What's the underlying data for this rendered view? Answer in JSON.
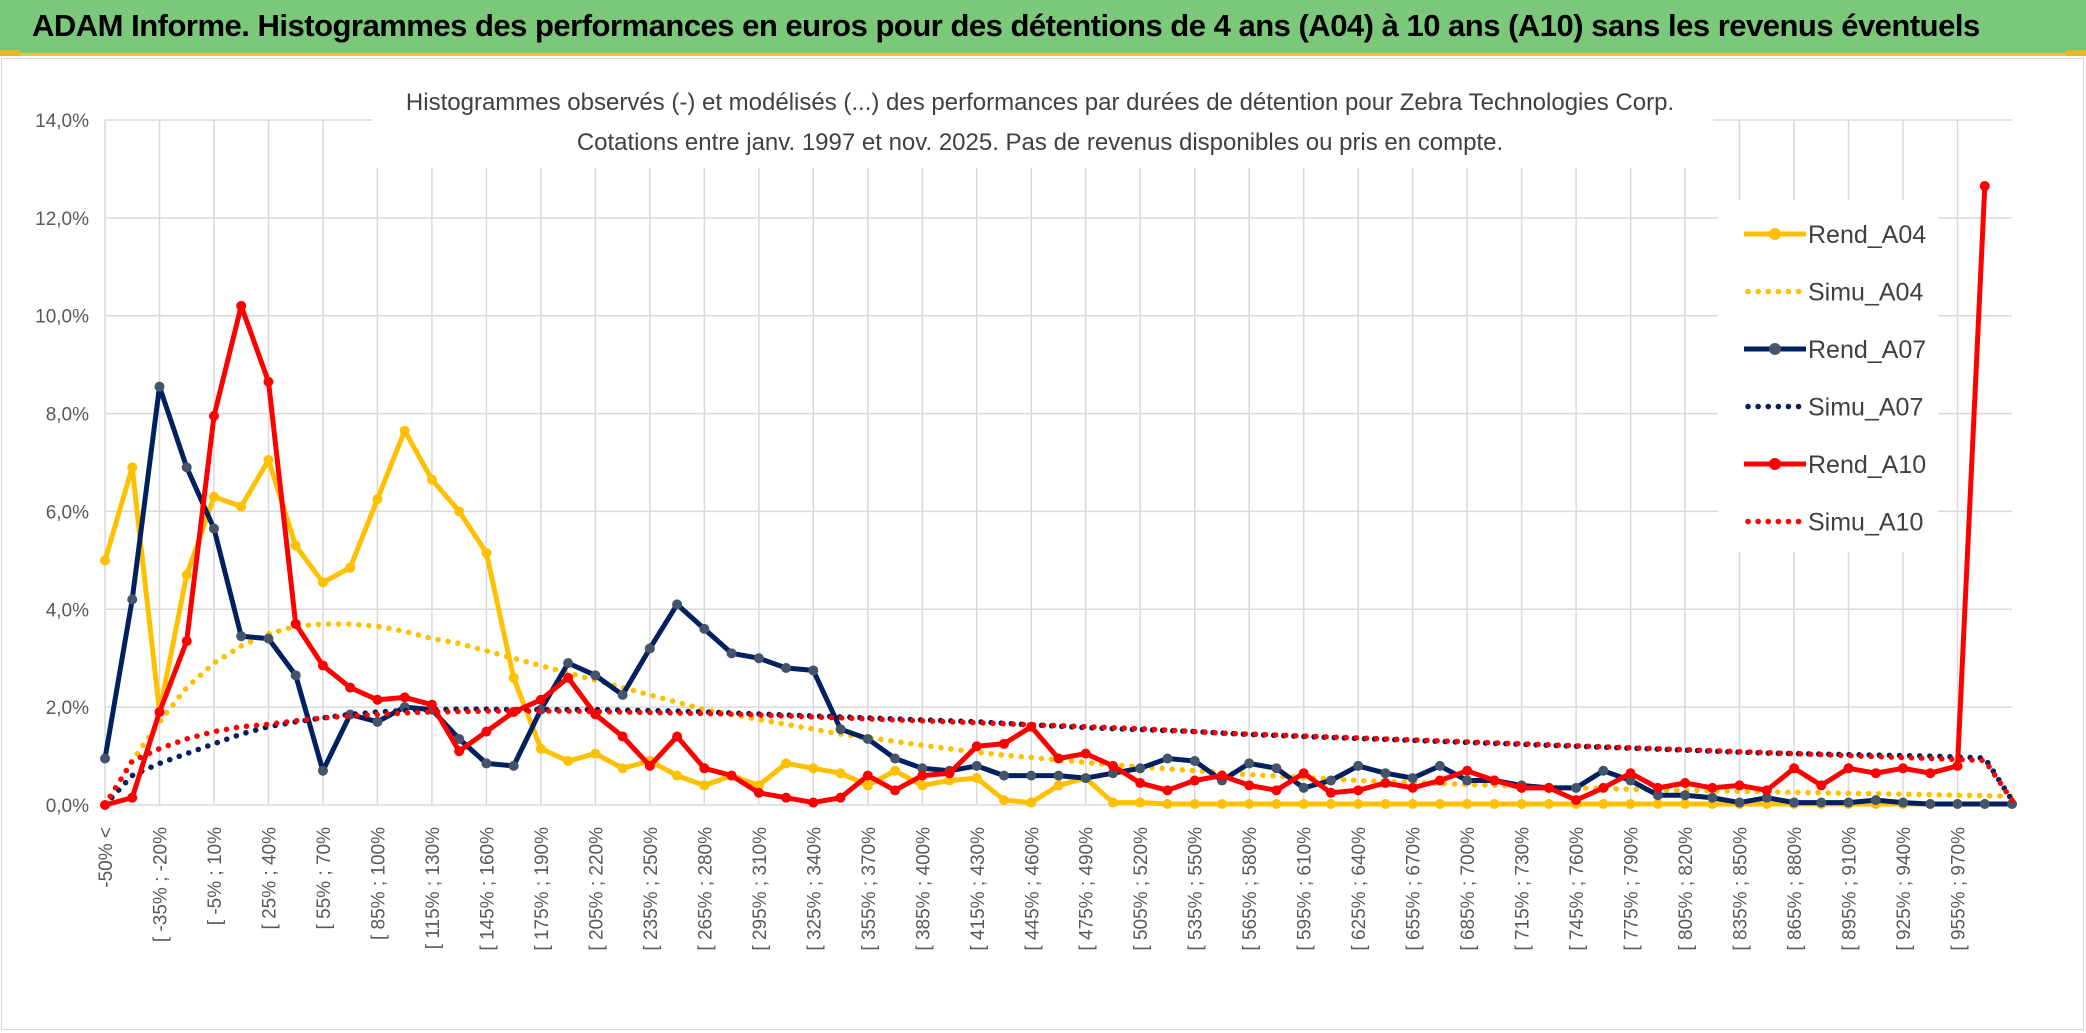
{
  "page_title": "ADAM Informe. Histogrammes des performances en euros pour des détentions de 4 ans (A04) à 10 ans (A10) sans les revenus éventuels",
  "chart_data": {
    "type": "line",
    "title": "Histogrammes observés (-) et modélisés (...) des performances par durées de détention pour Zebra Technologies Corp.",
    "subtitle": "Cotations entre janv. 1997 et nov. 2025. Pas de revenus disponibles ou pris en compte.",
    "xlabel": "",
    "ylabel": "",
    "ylim": [
      0,
      14
    ],
    "yticks": [
      "0,0%",
      "2,0%",
      "4,0%",
      "6,0%",
      "8,0%",
      "10,0%",
      "12,0%",
      "14,0%"
    ],
    "x_tick_labels": [
      "-50% <",
      "[ -35% ; -20%",
      "[ -5% ; 10%",
      "[ 25% ; 40%",
      "[ 55% ; 70%",
      "[ 85% ; 100%",
      "[ 115% ; 130%",
      "[ 145% ; 160%",
      "[ 175% ; 190%",
      "[ 205% ; 220%",
      "[ 235% ; 250%",
      "[ 265% ; 280%",
      "[ 295% ; 310%",
      "[ 325% ; 340%",
      "[ 355% ; 370%",
      "[ 385% ; 400%",
      "[ 415% ; 430%",
      "[ 445% ; 460%",
      "[ 475% ; 490%",
      "[ 505% ; 520%",
      "[ 535% ; 550%",
      "[ 565% ; 580%",
      "[ 595% ; 610%",
      "[ 625% ; 640%",
      "[ 655% ; 670%",
      "[ 685% ; 700%",
      "[ 715% ; 730%",
      "[ 745% ; 760%",
      "[ 775% ; 790%",
      "[ 805% ; 820%",
      "[ 835% ; 850%",
      "[ 865% ; 880%",
      "[ 895% ; 910%",
      "[ 925% ; 940%",
      "[ 955% ; 970%"
    ],
    "legend_position": "right",
    "series": [
      {
        "name": "Rend_A04",
        "style": "solid",
        "color": "#ffc000",
        "values": [
          5.0,
          6.9,
          1.9,
          4.7,
          6.3,
          6.1,
          7.05,
          5.3,
          4.55,
          4.85,
          6.25,
          7.65,
          6.65,
          6.0,
          5.15,
          2.6,
          1.15,
          0.9,
          1.05,
          0.75,
          0.9,
          0.6,
          0.4,
          0.6,
          0.4,
          0.85,
          0.75,
          0.65,
          0.4,
          0.7,
          0.4,
          0.5,
          0.55,
          0.1,
          0.05,
          0.4,
          0.55,
          0.05,
          0.05,
          0.02,
          0.02,
          0.02,
          0.02,
          0.02,
          0.02,
          0.02,
          0.02,
          0.02,
          0.02,
          0.02,
          0.02,
          0.02,
          0.02,
          0.02,
          0.02,
          0.02,
          0.02,
          0.02,
          0.02,
          0.02,
          0.02,
          0.02,
          0.02,
          0.02,
          0.02,
          0.02,
          0.02,
          0.02,
          0.02,
          0.02,
          0.02
        ]
      },
      {
        "name": "Simu_A04",
        "style": "dotted",
        "color": "#ffc000",
        "values": [
          0.0,
          0.9,
          1.7,
          2.4,
          2.9,
          3.25,
          3.5,
          3.65,
          3.7,
          3.7,
          3.65,
          3.55,
          3.4,
          3.3,
          3.15,
          3.0,
          2.85,
          2.7,
          2.55,
          2.4,
          2.25,
          2.1,
          1.95,
          1.85,
          1.75,
          1.65,
          1.55,
          1.45,
          1.38,
          1.3,
          1.22,
          1.15,
          1.08,
          1.02,
          0.97,
          0.92,
          0.87,
          0.82,
          0.78,
          0.74,
          0.7,
          0.66,
          0.62,
          0.59,
          0.56,
          0.53,
          0.5,
          0.48,
          0.46,
          0.44,
          0.42,
          0.4,
          0.38,
          0.36,
          0.35,
          0.34,
          0.32,
          0.31,
          0.3,
          0.29,
          0.28,
          0.27,
          0.26,
          0.25,
          0.24,
          0.23,
          0.22,
          0.21,
          0.2,
          0.19,
          0.18
        ]
      },
      {
        "name": "Rend_A07",
        "style": "solid",
        "color": "#002060",
        "values": [
          0.95,
          4.2,
          8.55,
          6.9,
          5.65,
          3.45,
          3.4,
          2.65,
          0.7,
          1.85,
          1.7,
          2.0,
          1.95,
          1.35,
          0.85,
          0.8,
          1.95,
          2.9,
          2.65,
          2.25,
          3.2,
          4.1,
          3.6,
          3.1,
          3.0,
          2.8,
          2.75,
          1.55,
          1.35,
          0.95,
          0.75,
          0.7,
          0.8,
          0.6,
          0.6,
          0.6,
          0.55,
          0.65,
          0.75,
          0.95,
          0.9,
          0.5,
          0.85,
          0.75,
          0.35,
          0.5,
          0.8,
          0.65,
          0.55,
          0.8,
          0.5,
          0.5,
          0.4,
          0.35,
          0.35,
          0.7,
          0.5,
          0.2,
          0.2,
          0.15,
          0.05,
          0.15,
          0.05,
          0.05,
          0.05,
          0.1,
          0.05,
          0.02,
          0.02,
          0.02,
          0.02
        ]
      },
      {
        "name": "Simu_A07",
        "style": "dotted",
        "color": "#002060",
        "values": [
          0.0,
          0.6,
          0.85,
          1.05,
          1.25,
          1.45,
          1.6,
          1.7,
          1.78,
          1.85,
          1.9,
          1.93,
          1.95,
          1.96,
          1.96,
          1.95,
          1.95,
          1.95,
          1.95,
          1.94,
          1.93,
          1.92,
          1.9,
          1.88,
          1.86,
          1.84,
          1.82,
          1.8,
          1.78,
          1.76,
          1.74,
          1.72,
          1.7,
          1.67,
          1.64,
          1.61,
          1.58,
          1.56,
          1.54,
          1.52,
          1.5,
          1.47,
          1.44,
          1.42,
          1.4,
          1.38,
          1.36,
          1.34,
          1.32,
          1.3,
          1.28,
          1.26,
          1.24,
          1.22,
          1.2,
          1.18,
          1.16,
          1.14,
          1.12,
          1.1,
          1.08,
          1.06,
          1.05,
          1.04,
          1.03,
          1.02,
          1.01,
          1.0,
          0.98,
          0.96,
          0.1
        ]
      },
      {
        "name": "Rend_A10",
        "style": "solid",
        "color": "#ff0000",
        "values": [
          0.0,
          0.15,
          1.9,
          3.35,
          7.95,
          10.2,
          8.65,
          3.7,
          2.85,
          2.4,
          2.15,
          2.2,
          2.05,
          1.1,
          1.5,
          1.9,
          2.15,
          2.6,
          1.85,
          1.4,
          0.8,
          1.4,
          0.75,
          0.6,
          0.25,
          0.15,
          0.05,
          0.15,
          0.6,
          0.3,
          0.6,
          0.65,
          1.2,
          1.25,
          1.6,
          0.95,
          1.05,
          0.8,
          0.45,
          0.3,
          0.5,
          0.6,
          0.4,
          0.3,
          0.65,
          0.25,
          0.3,
          0.45,
          0.35,
          0.5,
          0.7,
          0.5,
          0.35,
          0.35,
          0.1,
          0.35,
          0.65,
          0.35,
          0.45,
          0.35,
          0.4,
          0.3,
          0.75,
          0.4,
          0.75,
          0.65,
          0.75,
          0.65,
          0.8,
          12.65
        ]
      },
      {
        "name": "Simu_A10",
        "style": "dotted",
        "color": "#ff0000",
        "values": [
          0.0,
          0.9,
          1.15,
          1.35,
          1.5,
          1.6,
          1.65,
          1.72,
          1.78,
          1.82,
          1.85,
          1.88,
          1.9,
          1.91,
          1.92,
          1.92,
          1.92,
          1.92,
          1.91,
          1.9,
          1.89,
          1.88,
          1.87,
          1.86,
          1.84,
          1.82,
          1.8,
          1.78,
          1.76,
          1.74,
          1.72,
          1.7,
          1.68,
          1.66,
          1.64,
          1.62,
          1.6,
          1.58,
          1.56,
          1.53,
          1.5,
          1.47,
          1.45,
          1.43,
          1.41,
          1.39,
          1.37,
          1.35,
          1.33,
          1.31,
          1.29,
          1.27,
          1.25,
          1.23,
          1.21,
          1.19,
          1.17,
          1.15,
          1.13,
          1.11,
          1.09,
          1.07,
          1.05,
          1.03,
          1.01,
          0.99,
          0.97,
          0.95,
          0.93,
          0.91,
          0.1
        ]
      }
    ]
  }
}
